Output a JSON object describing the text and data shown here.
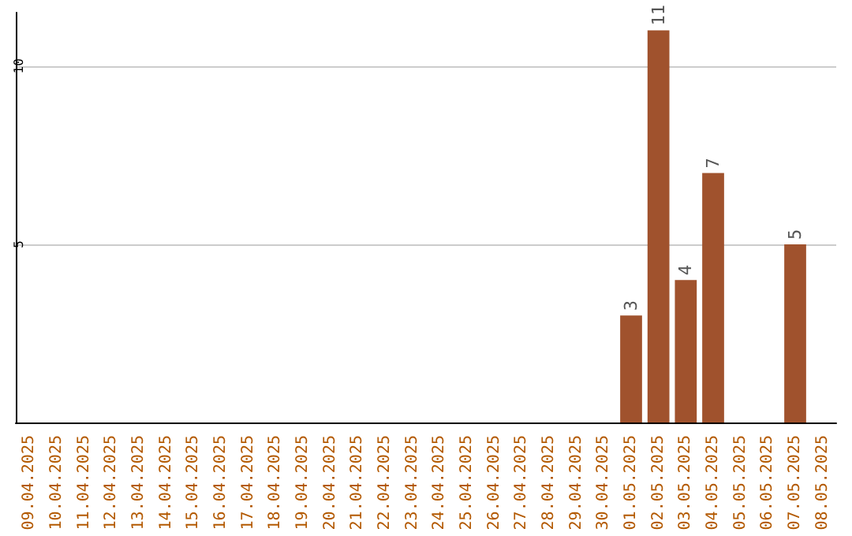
{
  "chart_data": {
    "type": "bar",
    "categories": [
      "09.04.2025",
      "10.04.2025",
      "11.04.2025",
      "12.04.2025",
      "13.04.2025",
      "14.04.2025",
      "15.04.2025",
      "16.04.2025",
      "17.04.2025",
      "18.04.2025",
      "19.04.2025",
      "20.04.2025",
      "21.04.2025",
      "22.04.2025",
      "23.04.2025",
      "24.04.2025",
      "25.04.2025",
      "26.04.2025",
      "27.04.2025",
      "28.04.2025",
      "29.04.2025",
      "30.04.2025",
      "01.05.2025",
      "02.05.2025",
      "03.05.2025",
      "04.05.2025",
      "05.05.2025",
      "06.05.2025",
      "07.05.2025",
      "08.05.2025"
    ],
    "values": [
      0,
      0,
      0,
      0,
      0,
      0,
      0,
      0,
      0,
      0,
      0,
      0,
      0,
      0,
      0,
      0,
      0,
      0,
      0,
      0,
      0,
      0,
      3,
      11,
      4,
      7,
      0,
      0,
      5,
      0
    ],
    "value_labels": [
      null,
      null,
      null,
      null,
      null,
      null,
      null,
      null,
      null,
      null,
      null,
      null,
      null,
      null,
      null,
      null,
      null,
      null,
      null,
      null,
      null,
      null,
      "3",
      "11",
      "4",
      "7",
      null,
      null,
      "5",
      null
    ],
    "color": "#a0522d",
    "ylim": [
      0,
      11.5
    ],
    "yticks": [
      5,
      10
    ],
    "grid": "y"
  }
}
